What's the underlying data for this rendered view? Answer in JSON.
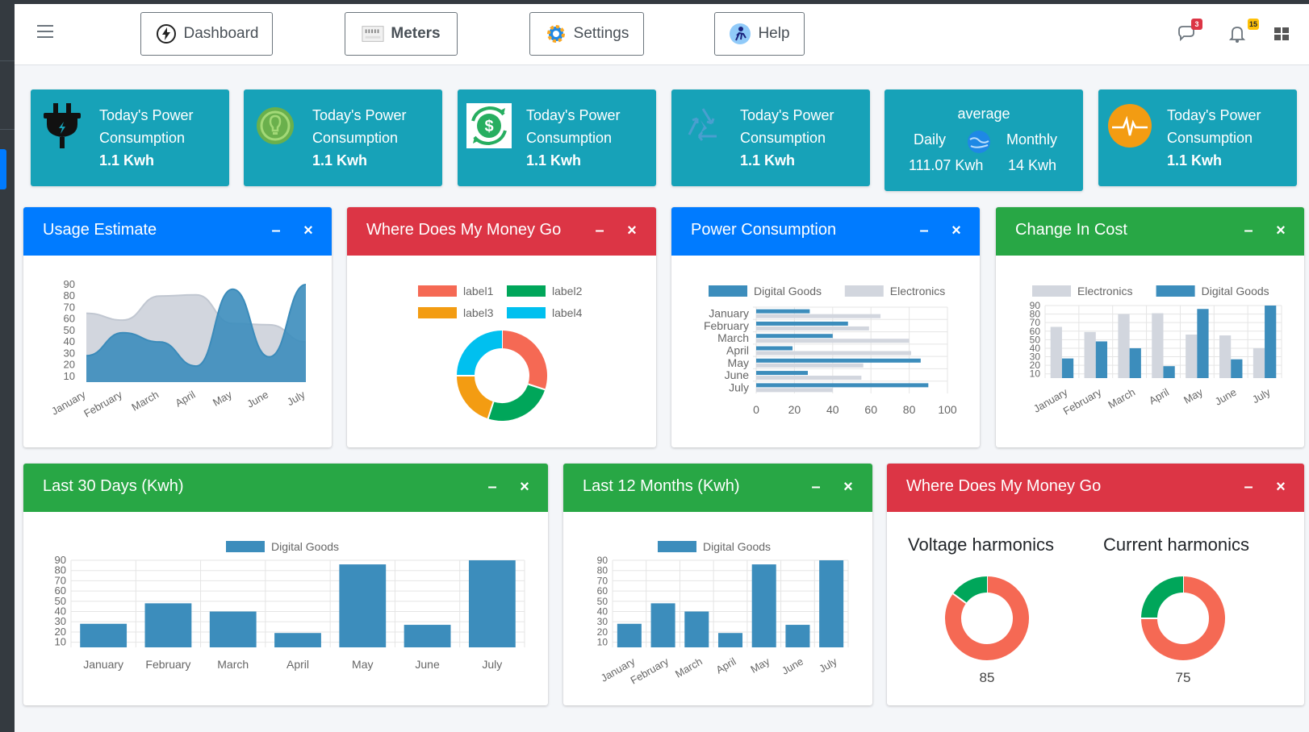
{
  "nav": {
    "dashboard": "Dashboard",
    "meters": "Meters",
    "settings": "Settings",
    "help": "Help",
    "messages_count": "3",
    "notifications_count": "15"
  },
  "info_boxes": [
    {
      "line1": "Today's Power",
      "line2": "Consumption",
      "value": "1.1 Kwh",
      "icon": "plug-icon"
    },
    {
      "line1": "Today's Power",
      "line2": "Consumption",
      "value": "1.1 Kwh",
      "icon": "bulb-icon"
    },
    {
      "line1": "Today's Power",
      "line2": "Consumption",
      "value": "1.1 Kwh",
      "icon": "dollar-cycle-icon"
    },
    {
      "line1": "Today's Power",
      "line2": "Consumption",
      "value": "1.1 Kwh",
      "icon": "recycle-icon"
    },
    {
      "title": "average",
      "daily_label": "Daily",
      "daily_value": "111.07 Kwh",
      "monthly_label": "Monthly",
      "monthly_value": "14 Kwh",
      "icon": "globe-icon"
    },
    {
      "line1": "Today's Power",
      "line2": "Consumption",
      "value": "1.1 Kwh",
      "icon": "pulse-icon"
    }
  ],
  "cards": {
    "usage_estimate": "Usage Estimate",
    "money1": "Where Does My Money Go",
    "power_consumption": "Power Consumption",
    "change_in_cost": "Change In Cost",
    "last30": "Last 30 Days (Kwh)",
    "last12": "Last 12 Months (Kwh)",
    "money2": "Where Does My Money Go"
  },
  "colors": {
    "info": "#17a2b8",
    "primary": "#007bff",
    "danger": "#dc3545",
    "success": "#28a745",
    "series_blue": "#3c8dbc",
    "series_grey": "#d2d6de"
  },
  "chart_data": [
    {
      "type": "area",
      "categories": [
        "January",
        "February",
        "March",
        "April",
        "May",
        "June",
        "July"
      ],
      "series": [
        {
          "name": "",
          "values": [
            65,
            59,
            80,
            81,
            56,
            55,
            40
          ]
        },
        {
          "name": "",
          "values": [
            28,
            48,
            40,
            19,
            86,
            27,
            90
          ]
        }
      ],
      "yticks": [
        10,
        20,
        30,
        40,
        50,
        60,
        70,
        80,
        90
      ],
      "ylim": [
        5,
        90
      ]
    },
    {
      "type": "pie",
      "labels": [
        "label1",
        "label2",
        "label3",
        "label4"
      ],
      "values": [
        30,
        25,
        20,
        25
      ],
      "colors": [
        "#f56954",
        "#00a65a",
        "#f39c12",
        "#00c0ef"
      ]
    },
    {
      "type": "bar",
      "orientation": "horizontal",
      "categories": [
        "January",
        "February",
        "March",
        "April",
        "May",
        "June",
        "July"
      ],
      "series": [
        {
          "name": "Digital Goods",
          "values": [
            28,
            48,
            40,
            19,
            86,
            27,
            90
          ]
        },
        {
          "name": "Electronics",
          "values": [
            65,
            59,
            80,
            81,
            56,
            55,
            40
          ]
        }
      ],
      "xticks": [
        0,
        20,
        40,
        60,
        80,
        100
      ]
    },
    {
      "type": "bar",
      "categories": [
        "January",
        "February",
        "March",
        "April",
        "May",
        "June",
        "July"
      ],
      "series": [
        {
          "name": "Electronics",
          "values": [
            65,
            59,
            80,
            81,
            56,
            55,
            40
          ]
        },
        {
          "name": "Digital Goods",
          "values": [
            28,
            48,
            40,
            19,
            86,
            27,
            90
          ]
        }
      ],
      "yticks": [
        10,
        20,
        30,
        40,
        50,
        60,
        70,
        80,
        90
      ]
    },
    {
      "type": "bar",
      "categories": [
        "January",
        "February",
        "March",
        "April",
        "May",
        "June",
        "July"
      ],
      "series": [
        {
          "name": "Digital Goods",
          "values": [
            28,
            48,
            40,
            19,
            86,
            27,
            90
          ]
        }
      ],
      "yticks": [
        10,
        20,
        30,
        40,
        50,
        60,
        70,
        80,
        90
      ]
    },
    {
      "type": "bar",
      "categories": [
        "January",
        "February",
        "March",
        "April",
        "May",
        "June",
        "July"
      ],
      "series": [
        {
          "name": "Digital Goods",
          "values": [
            28,
            48,
            40,
            19,
            86,
            27,
            90
          ]
        }
      ],
      "yticks": [
        10,
        20,
        30,
        40,
        50,
        60,
        70,
        80,
        90
      ]
    },
    {
      "type": "pie",
      "title": "Voltage harmonics",
      "value_label": "85",
      "values": [
        85,
        15
      ],
      "colors": [
        "#f56954",
        "#00a65a"
      ]
    },
    {
      "type": "pie",
      "title": "Current harmonics",
      "value_label": "75",
      "values": [
        75,
        25
      ],
      "colors": [
        "#f56954",
        "#00a65a"
      ]
    }
  ]
}
